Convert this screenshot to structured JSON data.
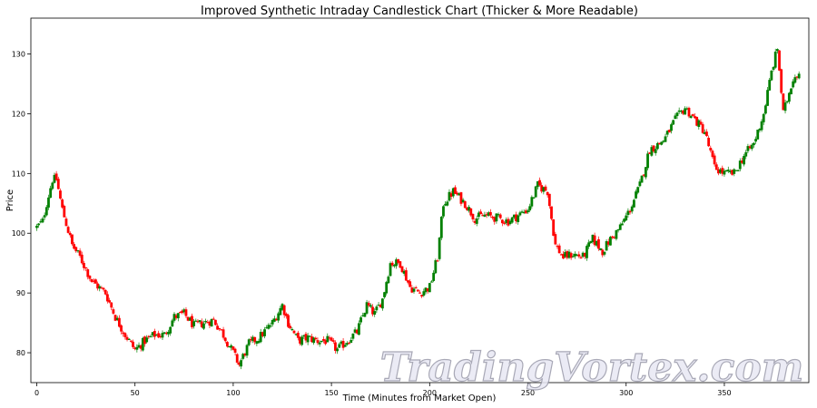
{
  "chart_data": {
    "type": "candlestick",
    "title": "Improved Synthetic Intraday Candlestick Chart (Thicker & More Readable)",
    "xlabel": "Time (Minutes from Market Open)",
    "ylabel": "Price",
    "xlim": [
      -3,
      393
    ],
    "ylim": [
      75,
      136
    ],
    "xticks": [
      0,
      50,
      100,
      150,
      200,
      250,
      300,
      350
    ],
    "yticks": [
      80,
      90,
      100,
      110,
      120,
      130
    ],
    "grid": false,
    "up_color": "#008000",
    "down_color": "#ff0000",
    "anchors": [
      [
        0,
        101
      ],
      [
        3,
        102
      ],
      [
        5,
        105
      ],
      [
        8,
        109
      ],
      [
        10,
        109
      ],
      [
        13,
        104
      ],
      [
        18,
        98
      ],
      [
        22,
        96
      ],
      [
        28,
        92
      ],
      [
        35,
        90
      ],
      [
        40,
        86
      ],
      [
        45,
        83
      ],
      [
        50,
        80.5
      ],
      [
        55,
        82
      ],
      [
        60,
        83
      ],
      [
        65,
        83
      ],
      [
        70,
        86
      ],
      [
        75,
        86.5
      ],
      [
        80,
        84.5
      ],
      [
        85,
        85
      ],
      [
        90,
        85.5
      ],
      [
        95,
        83
      ],
      [
        100,
        80
      ],
      [
        103,
        78
      ],
      [
        108,
        81.5
      ],
      [
        113,
        82.5
      ],
      [
        120,
        85
      ],
      [
        125,
        88
      ],
      [
        128,
        85
      ],
      [
        133,
        82
      ],
      [
        138,
        82.5
      ],
      [
        143,
        82
      ],
      [
        148,
        82
      ],
      [
        153,
        80.5
      ],
      [
        158,
        82
      ],
      [
        163,
        83.5
      ],
      [
        168,
        88
      ],
      [
        172,
        86.5
      ],
      [
        176,
        89
      ],
      [
        180,
        95
      ],
      [
        185,
        95
      ],
      [
        190,
        91
      ],
      [
        195,
        90
      ],
      [
        200,
        91
      ],
      [
        204,
        96
      ],
      [
        207,
        105
      ],
      [
        212,
        107
      ],
      [
        218,
        105
      ],
      [
        223,
        102.5
      ],
      [
        228,
        103
      ],
      [
        235,
        102.5
      ],
      [
        240,
        102
      ],
      [
        245,
        103
      ],
      [
        250,
        104
      ],
      [
        255,
        108
      ],
      [
        260,
        107
      ],
      [
        264,
        98
      ],
      [
        268,
        96
      ],
      [
        273,
        96.5
      ],
      [
        278,
        96
      ],
      [
        283,
        99
      ],
      [
        288,
        97
      ],
      [
        292,
        99
      ],
      [
        297,
        101
      ],
      [
        302,
        104
      ],
      [
        307,
        108
      ],
      [
        312,
        114
      ],
      [
        317,
        115
      ],
      [
        320,
        116
      ],
      [
        325,
        119
      ],
      [
        330,
        121
      ],
      [
        335,
        119
      ],
      [
        340,
        117
      ],
      [
        345,
        111
      ],
      [
        350,
        110
      ],
      [
        355,
        110
      ],
      [
        360,
        113
      ],
      [
        365,
        115
      ],
      [
        370,
        120
      ],
      [
        374,
        127
      ],
      [
        377,
        131
      ],
      [
        380,
        120
      ],
      [
        385,
        126
      ],
      [
        388,
        127
      ]
    ]
  },
  "watermark": {
    "text": "TradingVortex.com"
  }
}
